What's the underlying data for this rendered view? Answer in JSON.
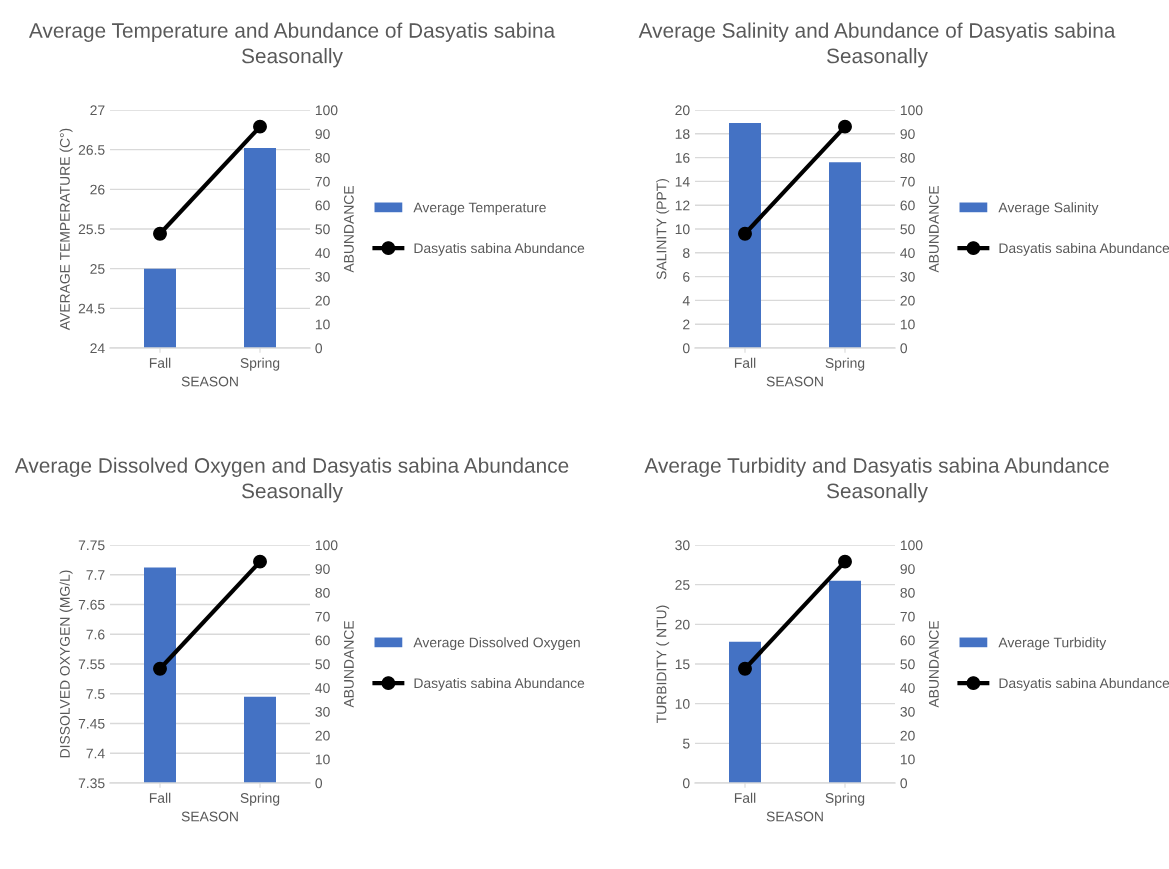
{
  "chart_data": [
    {
      "type": "bar",
      "title": "Average Temperature and Abundance of Dasyatis sabina Seasonally",
      "xlabel": "SEASON",
      "ylabel": "AVERAGE TEMPERATURE (C°)",
      "y2label": "ABUNDANCE",
      "categories": [
        "Fall",
        "Spring"
      ],
      "grid": "y",
      "legend": "right",
      "ylim": [
        24,
        27
      ],
      "yticks": [
        24,
        24.5,
        25,
        25.5,
        26,
        26.5,
        27
      ],
      "y2lim": [
        0,
        100
      ],
      "y2ticks": [
        0,
        10,
        20,
        30,
        40,
        50,
        60,
        70,
        80,
        90,
        100
      ],
      "series": [
        {
          "name": "Average Temperature",
          "color": "#4472c4",
          "values": [
            25.0,
            26.52
          ]
        },
        {
          "name": "Dasyatis sabina Abundance",
          "type": "line",
          "axis": "y2",
          "color": "#000000",
          "marker": "circle",
          "values": [
            48,
            93
          ]
        }
      ]
    },
    {
      "type": "bar",
      "title": "Average Salinity and Abundance of Dasyatis sabina Seasonally",
      "xlabel": "SEASON",
      "ylabel": "SALINITY (PPT)",
      "y2label": "ABUNDANCE",
      "categories": [
        "Fall",
        "Spring"
      ],
      "grid": "y",
      "legend": "right",
      "ylim": [
        0,
        20
      ],
      "yticks": [
        0,
        2,
        4,
        6,
        8,
        10,
        12,
        14,
        16,
        18,
        20
      ],
      "y2lim": [
        0,
        100
      ],
      "y2ticks": [
        0,
        10,
        20,
        30,
        40,
        50,
        60,
        70,
        80,
        90,
        100
      ],
      "series": [
        {
          "name": "Average Salinity",
          "color": "#4472c4",
          "values": [
            18.9,
            15.6
          ]
        },
        {
          "name": "Dasyatis sabina Abundance",
          "type": "line",
          "axis": "y2",
          "color": "#000000",
          "marker": "circle",
          "values": [
            48,
            93
          ]
        }
      ]
    },
    {
      "type": "bar",
      "title": "Average Dissolved Oxygen and Dasyatis sabina Abundance Seasonally",
      "xlabel": "SEASON",
      "ylabel": "DISSOLVED OXYGEN (MG/L)",
      "y2label": "ABUNDANCE",
      "categories": [
        "Fall",
        "Spring"
      ],
      "grid": "y",
      "legend": "right",
      "ylim": [
        7.35,
        7.75
      ],
      "yticks": [
        7.35,
        7.4,
        7.45,
        7.5,
        7.55,
        7.6,
        7.65,
        7.7,
        7.75
      ],
      "y2lim": [
        0,
        100
      ],
      "y2ticks": [
        0,
        10,
        20,
        30,
        40,
        50,
        60,
        70,
        80,
        90,
        100
      ],
      "series": [
        {
          "name": "Average Dissolved Oxygen",
          "color": "#4472c4",
          "values": [
            7.712,
            7.495
          ]
        },
        {
          "name": "Dasyatis sabina Abundance",
          "type": "line",
          "axis": "y2",
          "color": "#000000",
          "marker": "circle",
          "values": [
            48,
            93
          ]
        }
      ]
    },
    {
      "type": "bar",
      "title": "Average Turbidity and Dasyatis sabina Abundance Seasonally",
      "xlabel": "SEASON",
      "ylabel": "TURBIDITY ( NTU)",
      "y2label": "ABUNDANCE",
      "categories": [
        "Fall",
        "Spring"
      ],
      "grid": "y",
      "legend": "right",
      "ylim": [
        0,
        30
      ],
      "yticks": [
        0,
        5,
        10,
        15,
        20,
        25,
        30
      ],
      "y2lim": [
        0,
        100
      ],
      "y2ticks": [
        0,
        10,
        20,
        30,
        40,
        50,
        60,
        70,
        80,
        90,
        100
      ],
      "series": [
        {
          "name": "Average Turbidity",
          "color": "#4472c4",
          "values": [
            17.8,
            25.5
          ]
        },
        {
          "name": "Dasyatis sabina Abundance",
          "type": "line",
          "axis": "y2",
          "color": "#000000",
          "marker": "circle",
          "values": [
            48,
            93
          ]
        }
      ]
    }
  ]
}
